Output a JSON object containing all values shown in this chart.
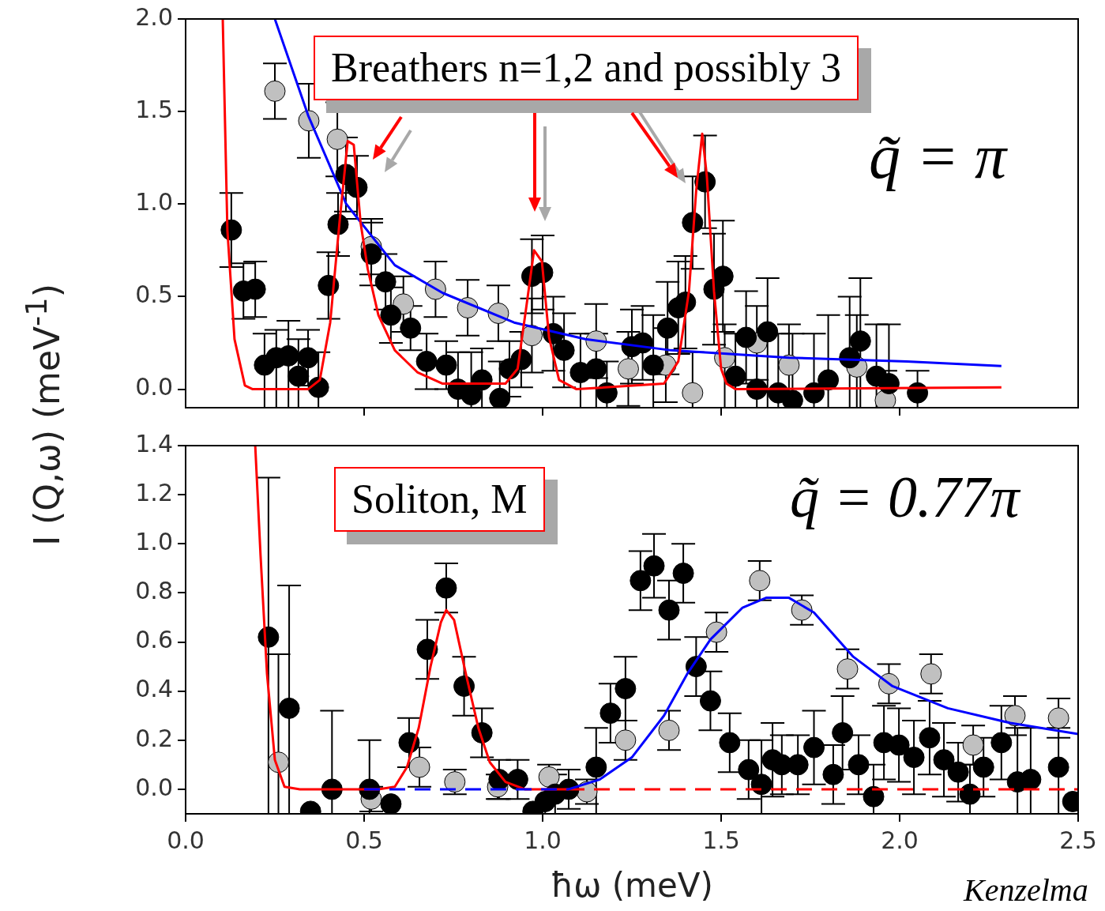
{
  "chart_data": [
    {
      "type": "scatter",
      "ylabel": "I (Q,ω) (meV$^{-1}$)",
      "xlim": [
        0,
        2.5
      ],
      "xticks": [
        {
          "value": 0.5,
          "label": null
        },
        {
          "value": 1,
          "label": null
        },
        {
          "value": 1.5,
          "label": null
        },
        {
          "value": 2,
          "label": null
        }
      ],
      "ylim": [
        -0.1,
        2.0
      ],
      "yticks": [
        {
          "value": 0,
          "label": "0.0"
        },
        {
          "value": 0.5,
          "label": "0.5"
        },
        {
          "value": 1,
          "label": "1.0"
        },
        {
          "value": 1.5,
          "label": "1.5"
        },
        {
          "value": 2,
          "label": "2.0"
        }
      ],
      "tick_labels": "y",
      "marker": "circle",
      "annotations": [
        "Breathers n=1,2 and possibly 3",
        "q̃ = π"
      ],
      "series": [
        {
          "type": "scatter",
          "color": "#c0c0c0",
          "x": [
            0.25,
            0.345,
            0.425,
            0.52,
            0.61,
            0.7,
            0.79,
            0.876,
            0.97,
            1.15,
            1.24,
            1.345,
            1.42,
            1.51,
            1.6,
            1.69,
            1.88,
            1.96
          ],
          "values": [
            1.61,
            1.45,
            1.35,
            0.77,
            0.46,
            0.54,
            0.44,
            0.41,
            0.29,
            0.26,
            0.11,
            0.13,
            -0.02,
            0.17,
            0.25,
            0.13,
            0.12,
            -0.06
          ],
          "errors": [
            0.15,
            0.2,
            0.2,
            0.15,
            0.15,
            0.15,
            0.15,
            0.15,
            0.2,
            0.2,
            0.2,
            0.2,
            [
              -0.1,
              0.2
            ],
            [
              -0.1,
              0.35
            ],
            0.2,
            [
              -0.1,
              0.35
            ],
            [
              -0.1,
              0.4
            ],
            [
              -0.1,
              0.1
            ]
          ]
        },
        {
          "type": "scatter",
          "color": "#000000",
          "x": [
            0.128,
            0.162,
            0.195,
            0.221,
            0.254,
            0.288,
            0.316,
            0.343,
            0.372,
            0.4,
            0.427,
            0.449,
            0.48,
            0.52,
            0.56,
            0.575,
            0.63,
            0.675,
            0.73,
            0.763,
            0.8,
            0.83,
            0.88,
            0.907,
            0.94,
            0.97,
            1.0,
            1.03,
            1.06,
            1.106,
            1.15,
            1.18,
            1.25,
            1.28,
            1.31,
            1.35,
            1.38,
            1.4,
            1.42,
            1.455,
            1.48,
            1.505,
            1.54,
            1.57,
            1.6,
            1.63,
            1.66,
            1.7,
            1.76,
            1.8,
            1.86,
            1.89,
            1.935,
            1.97,
            2.05
          ],
          "values": [
            0.86,
            0.53,
            0.54,
            0.13,
            0.17,
            0.18,
            0.07,
            0.17,
            0.01,
            0.56,
            0.89,
            1.16,
            1.09,
            0.73,
            0.58,
            0.4,
            0.33,
            0.15,
            0.13,
            0.0,
            -0.03,
            0.05,
            -0.05,
            0.11,
            0.16,
            0.61,
            0.63,
            0.3,
            0.21,
            0.09,
            0.11,
            -0.02,
            0.23,
            0.25,
            0.13,
            0.33,
            0.44,
            0.47,
            0.9,
            1.12,
            0.54,
            0.61,
            0.07,
            0.28,
            0.0,
            0.31,
            -0.02,
            -0.06,
            -0.02,
            0.05,
            0.17,
            0.26,
            0.07,
            0.03,
            -0.02
          ],
          "errors": [
            0.2,
            0.15,
            0.15,
            [
              -0.1,
              0.3
            ],
            [
              -0.1,
              0.32
            ],
            [
              -0.1,
              0.37
            ],
            [
              -0.1,
              0.27
            ],
            0.15,
            [
              -0.1,
              0.2
            ],
            0.18,
            0.17,
            0.2,
            0.17,
            0.17,
            0.15,
            0.15,
            0.12,
            0.15,
            0.13,
            [
              -0.1,
              0.2
            ],
            [
              -0.1,
              0.2
            ],
            [
              -0.1,
              0.22
            ],
            [
              -0.1,
              0.15
            ],
            0.15,
            0.15,
            0.2,
            0.2,
            0.2,
            0.2,
            [
              -0.1,
              0.3
            ],
            [
              -0.1,
              0.3
            ],
            [
              -0.1,
              0.15
            ],
            0.2,
            0.2,
            [
              -0.1,
              0.4
            ],
            0.25,
            0.25,
            0.25,
            0.25,
            0.25,
            0.3,
            0.3,
            [
              -0.1,
              0.3
            ],
            0.25,
            [
              -0.1,
              0.3
            ],
            [
              -0.1,
              0.6
            ],
            [
              -0.1,
              0.3
            ],
            [
              -0.1,
              0.3
            ],
            [
              -0.1,
              0.3
            ],
            [
              -0.1,
              0.4
            ],
            [
              -0.1,
              0.5
            ],
            [
              -0.1,
              0.6
            ],
            [
              -0.1,
              0.35
            ],
            [
              -0.1,
              0.35
            ],
            [
              -0.1,
              0.1
            ]
          ]
        },
        {
          "type": "line",
          "color": "#0000ff",
          "line_style": "solid",
          "marker": "none",
          "x": [
            0.25,
            0.343,
            0.45,
            0.586,
            0.72,
            0.92,
            1.12,
            1.36,
            1.69,
            2.02,
            2.285
          ],
          "values": [
            2.0,
            1.48,
            1.0,
            0.67,
            0.52,
            0.36,
            0.27,
            0.21,
            0.17,
            0.15,
            0.125
          ]
        },
        {
          "type": "line",
          "color": "#ff0000",
          "line_style": "solid",
          "marker": "none",
          "x": [
            0.104,
            0.117,
            0.137,
            0.166,
            0.188,
            0.343,
            0.376,
            0.405,
            0.431,
            0.454,
            0.471,
            0.49,
            0.51,
            0.54,
            0.586,
            0.65,
            0.72,
            0.896,
            0.93,
            0.954,
            0.976,
            0.998,
            1.018,
            1.046,
            1.095,
            1.34,
            1.38,
            1.41,
            1.43,
            1.447,
            1.46,
            1.48,
            1.5,
            1.515,
            1.54,
            2.285
          ],
          "values": [
            2.0,
            0.86,
            0.27,
            0.02,
            0.0,
            0.0,
            0.05,
            0.36,
            0.9,
            1.34,
            1.32,
            0.9,
            0.65,
            0.4,
            0.21,
            0.09,
            0.03,
            0.03,
            0.11,
            0.44,
            0.75,
            0.69,
            0.28,
            0.05,
            0.0,
            0.03,
            0.15,
            0.53,
            1.07,
            1.38,
            1.15,
            0.53,
            0.11,
            0.03,
            0.0,
            0.01
          ]
        }
      ]
    },
    {
      "type": "scatter",
      "xlabel": "ħω (meV)",
      "xlim": [
        0,
        2.5
      ],
      "xticks": [
        {
          "value": 0,
          "label": "0.0"
        },
        {
          "value": 0.5,
          "label": "0.5"
        },
        {
          "value": 1,
          "label": "1.0"
        },
        {
          "value": 1.5,
          "label": "1.5"
        },
        {
          "value": 2,
          "label": "2.0"
        },
        {
          "value": 2.5,
          "label": "2.5"
        }
      ],
      "ylim": [
        -0.1,
        1.4
      ],
      "yticks": [
        {
          "value": 0,
          "label": "0.0"
        },
        {
          "value": 0.2,
          "label": "0.2"
        },
        {
          "value": 0.4,
          "label": "0.4"
        },
        {
          "value": 0.6,
          "label": "0.6"
        },
        {
          "value": 0.8,
          "label": "0.8"
        },
        {
          "value": 1,
          "label": "1.0"
        },
        {
          "value": 1.2,
          "label": "1.2"
        },
        {
          "value": 1.4,
          "label": "1.4"
        }
      ],
      "marker": "circle",
      "annotations": [
        "Soliton, M",
        "q̃ = 0.77π",
        "Kenzelma"
      ],
      "series": [
        {
          "type": "scatter",
          "color": "#c0c0c0",
          "x": [
            0.26,
            0.52,
            0.655,
            0.754,
            0.874,
            1.018,
            1.124,
            1.232,
            1.354,
            1.487,
            1.608,
            1.726,
            1.854,
            1.97,
            2.088,
            2.206,
            2.323,
            2.445
          ],
          "values": [
            0.11,
            -0.04,
            0.09,
            0.03,
            0.01,
            0.05,
            -0.01,
            0.2,
            0.24,
            0.64,
            0.85,
            0.73,
            0.49,
            0.43,
            0.47,
            0.18,
            0.3,
            0.29
          ],
          "errors": [
            [
              -0.1,
              0.55
            ],
            0.05,
            0.08,
            0.05,
            0.05,
            0.05,
            0.05,
            0.08,
            0.08,
            0.08,
            0.08,
            0.06,
            0.08,
            0.08,
            0.08,
            0.08,
            0.08,
            0.08
          ]
        },
        {
          "type": "scatter",
          "color": "#000000",
          "x": [
            0.232,
            0.29,
            0.35,
            0.41,
            0.515,
            0.575,
            0.626,
            0.677,
            0.73,
            0.78,
            0.83,
            0.878,
            0.93,
            0.973,
            1.007,
            1.035,
            1.073,
            1.15,
            1.19,
            1.232,
            1.274,
            1.312,
            1.354,
            1.394,
            1.43,
            1.47,
            1.524,
            1.577,
            1.613,
            1.644,
            1.67,
            1.715,
            1.76,
            1.814,
            1.84,
            1.885,
            1.927,
            1.956,
            1.998,
            2.04,
            2.084,
            2.124,
            2.164,
            2.197,
            2.235,
            2.285,
            2.33,
            2.367,
            2.445,
            2.485
          ],
          "values": [
            0.62,
            0.33,
            -0.09,
            0.0,
            0.0,
            -0.06,
            0.19,
            0.57,
            0.82,
            0.42,
            0.23,
            0.04,
            0.04,
            -0.09,
            -0.05,
            -0.02,
            0.0,
            0.09,
            0.31,
            0.41,
            0.85,
            0.91,
            0.73,
            0.88,
            0.5,
            0.36,
            0.19,
            0.08,
            0.02,
            0.12,
            0.1,
            0.1,
            0.17,
            0.06,
            0.23,
            0.1,
            -0.03,
            0.19,
            0.18,
            0.13,
            0.21,
            0.12,
            0.07,
            -0.02,
            0.09,
            0.19,
            0.03,
            0.04,
            0.09,
            -0.05
          ],
          "errors": [
            [
              -0.1,
              1.27
            ],
            [
              -0.1,
              0.83
            ],
            null,
            [
              -0.1,
              0.32
            ],
            [
              -0.1,
              0.2
            ],
            null,
            0.1,
            0.12,
            0.1,
            0.12,
            0.1,
            0.08,
            0.08,
            null,
            0.05,
            0.08,
            0.08,
            [
              -0.1,
              0.25
            ],
            0.12,
            0.13,
            0.12,
            0.13,
            0.12,
            0.12,
            0.12,
            0.12,
            0.12,
            0.12,
            [
              -0.1,
              0.2
            ],
            0.15,
            0.12,
            0.12,
            0.15,
            0.12,
            0.15,
            0.12,
            [
              -0.1,
              0.1
            ],
            0.15,
            0.15,
            0.15,
            0.15,
            0.15,
            0.12,
            [
              -0.1,
              0.1
            ],
            0.12,
            0.15,
            [
              -0.1,
              0.25
            ],
            [
              -0.1,
              0.25
            ],
            [
              -0.1,
              0.25
            ],
            null
          ]
        },
        {
          "type": "line",
          "color": "#ff0000",
          "line_style": "solid",
          "marker": "none",
          "x": [
            0.195,
            0.21,
            0.228,
            0.25,
            0.277,
            0.32,
            0.54,
            0.586,
            0.62,
            0.653,
            0.686,
            0.715,
            0.73,
            0.752,
            0.785,
            0.82,
            0.852,
            0.896,
            0.95,
            1.073
          ],
          "values": [
            1.4,
            0.95,
            0.47,
            0.12,
            0.01,
            0.0,
            0.0,
            0.01,
            0.09,
            0.25,
            0.5,
            0.68,
            0.73,
            0.69,
            0.47,
            0.25,
            0.11,
            0.03,
            0.0,
            0.0
          ]
        },
        {
          "type": "line",
          "color": "#ff0000",
          "line_style": "dashed",
          "marker": "none",
          "x": [
            1.073,
            2.5
          ],
          "values": [
            0.0,
            0.0
          ]
        },
        {
          "type": "line",
          "color": "#0000ff",
          "line_style": "dashed",
          "marker": "none",
          "x": [
            0.5,
            1.073
          ],
          "values": [
            0.0,
            0.0
          ]
        },
        {
          "type": "line",
          "color": "#0000ff",
          "line_style": "solid",
          "marker": "none",
          "x": [
            1.073,
            1.16,
            1.25,
            1.34,
            1.405,
            1.47,
            1.56,
            1.626,
            1.69,
            1.76,
            1.87,
            1.98,
            2.135,
            2.31,
            2.5
          ],
          "values": [
            0.0,
            0.04,
            0.13,
            0.3,
            0.47,
            0.61,
            0.74,
            0.78,
            0.78,
            0.72,
            0.54,
            0.42,
            0.33,
            0.27,
            0.225
          ]
        }
      ]
    }
  ]
}
